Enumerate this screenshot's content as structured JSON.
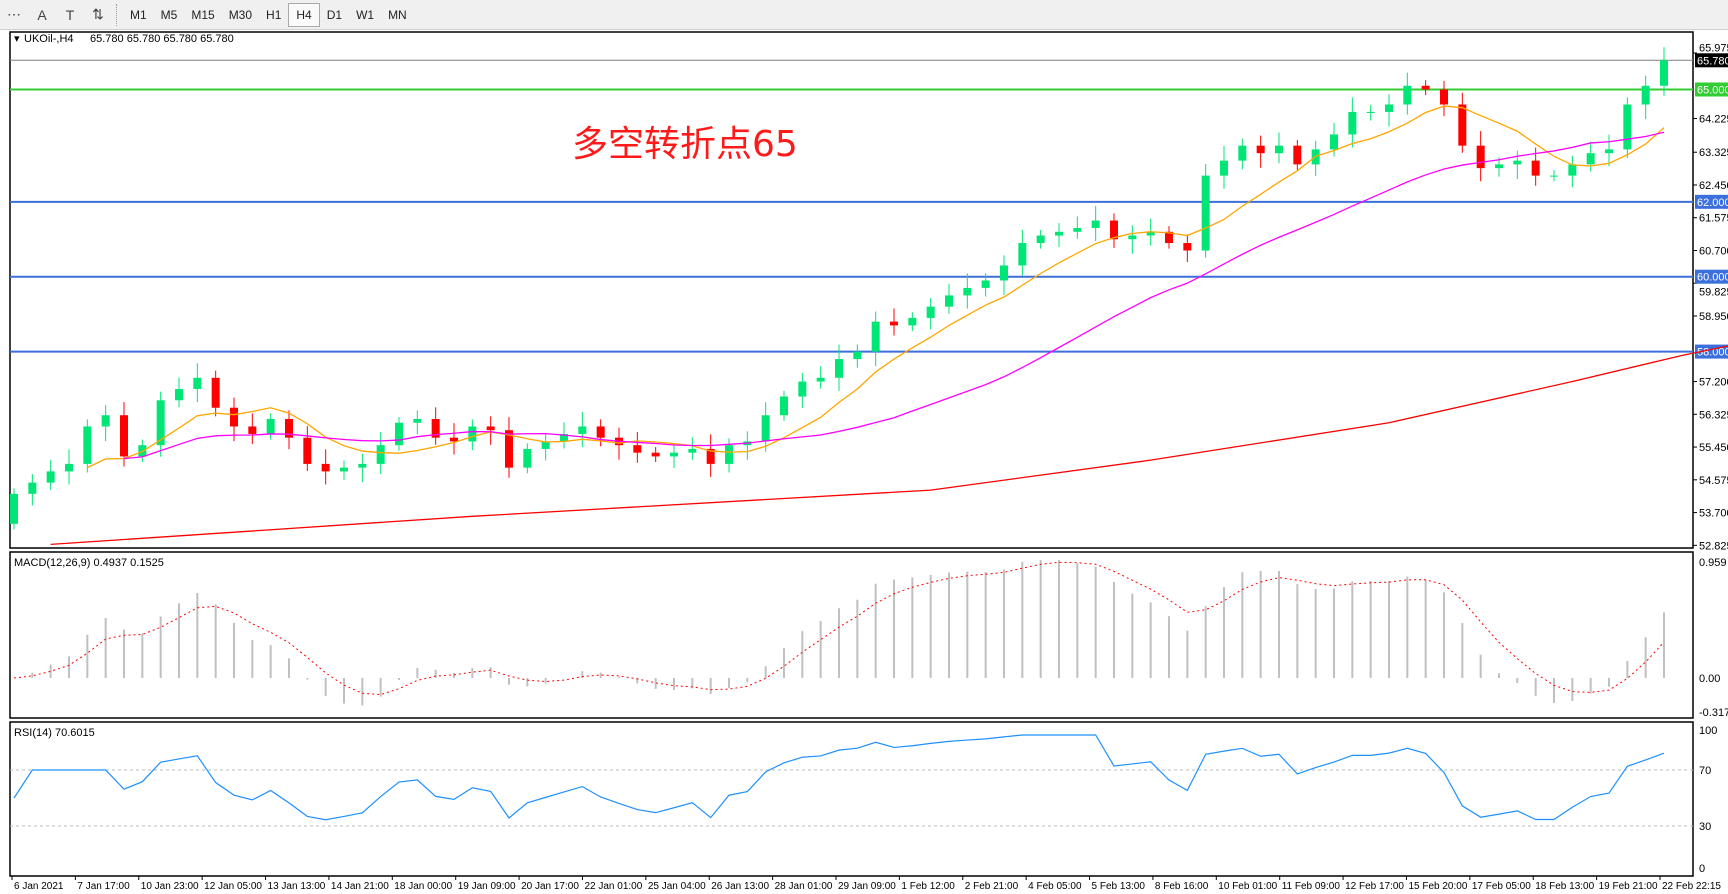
{
  "toolbar": {
    "tools": [
      {
        "icon": "grid-icon",
        "label": ""
      },
      {
        "icon": "text-a-icon",
        "label": "A"
      },
      {
        "icon": "text-label-icon",
        "label": "T"
      },
      {
        "icon": "arrows-icon",
        "label": "⇅"
      }
    ],
    "timeframes": [
      "M1",
      "M5",
      "M15",
      "M30",
      "H1",
      "H4",
      "D1",
      "W1",
      "MN"
    ],
    "active_timeframe": "H4"
  },
  "chart_header": {
    "symbol": "UKOil-,H4",
    "ohlc": "65.780 65.780 65.780 65.780"
  },
  "annotation": "多空转折点65",
  "colors": {
    "bull": "#00e676",
    "bear": "#ff0000",
    "ma_fast": "#ffa500",
    "ma_mid": "#ff00ff",
    "ma_slow": "#ff0000",
    "level_blue": "#3b6fdb",
    "level_green": "#32cd32",
    "macd_hist": "#c0c0c0",
    "macd_signal": "#ff0000",
    "rsi": "#1e90ff"
  },
  "chart_data": {
    "type": "candlestick",
    "closes": [
      54.2,
      54.5,
      54.8,
      55.0,
      56.0,
      56.3,
      55.2,
      55.5,
      56.7,
      57.0,
      57.3,
      56.5,
      56.0,
      55.8,
      56.2,
      55.7,
      55.0,
      54.8,
      54.9,
      55.0,
      55.5,
      56.1,
      56.2,
      55.7,
      55.6,
      56.0,
      55.9,
      54.9,
      55.4,
      55.6,
      55.8,
      56.0,
      55.7,
      55.5,
      55.3,
      55.2,
      55.3,
      55.4,
      55.0,
      55.5,
      55.6,
      56.3,
      56.8,
      57.2,
      57.3,
      57.8,
      58.0,
      58.8,
      58.7,
      58.9,
      59.2,
      59.5,
      59.7,
      59.9,
      60.3,
      60.9,
      61.1,
      61.2,
      61.3,
      61.5,
      61.0,
      61.1,
      61.2,
      60.9,
      60.7,
      62.7,
      63.1,
      63.5,
      63.3,
      63.5,
      63.0,
      63.4,
      63.8,
      64.4,
      64.4,
      64.6,
      65.1,
      65.0,
      64.6,
      63.5,
      62.9,
      63.0,
      63.1,
      62.7,
      62.7,
      63.0,
      63.3,
      63.4,
      64.6,
      65.1,
      65.78
    ],
    "first_open": 53.4,
    "slow_ma_points": [
      [
        2,
        52.85
      ],
      [
        25,
        53.6
      ],
      [
        50,
        54.3
      ],
      [
        62,
        55.1
      ],
      [
        75,
        56.1
      ],
      [
        85,
        57.2
      ],
      [
        91,
        57.9
      ],
      [
        96,
        58.4
      ]
    ],
    "price_axis": {
      "min": 52.825,
      "max": 65.975,
      "ticks": [
        "65.975",
        "64.225",
        "63.325",
        "62.450",
        "61.575",
        "60.700",
        "59.825",
        "58.950",
        "57.200",
        "56.325",
        "55.450",
        "54.575",
        "53.700",
        "52.825"
      ]
    },
    "levels": [
      {
        "value": 65.78,
        "label": "65.780",
        "color": "#808080",
        "tag": "#000000"
      },
      {
        "value": 65.0,
        "label": "65.000",
        "color": "#32cd32",
        "tag": "#32cd32"
      },
      {
        "value": 62.0,
        "label": "62.000",
        "color": "#3b6fdb",
        "tag": "#3b6fdb"
      },
      {
        "value": 60.0,
        "label": "60.000",
        "color": "#3b6fdb",
        "tag": "#3b6fdb"
      },
      {
        "value": 58.0,
        "label": "58.000",
        "color": "#3b6fdb",
        "tag": "#3b6fdb"
      }
    ],
    "macd": {
      "label": "MACD(12,26,9) 0.4937 0.1525",
      "max": 0.959,
      "min": -0.3171,
      "ticks": [
        "0.959",
        "0.00",
        "-0.3171"
      ]
    },
    "rsi": {
      "label": "RSI(14) 70.6015",
      "ticks": [
        "100",
        "70",
        "30",
        "0"
      ],
      "levels": [
        70,
        30
      ]
    },
    "time_labels": [
      "6 Jan 2021",
      "7 Jan 17:00",
      "10 Jan 23:00",
      "12 Jan 05:00",
      "13 Jan 13:00",
      "14 Jan 21:00",
      "18 Jan 00:00",
      "19 Jan 09:00",
      "20 Jan 17:00",
      "22 Jan 01:00",
      "25 Jan 04:00",
      "26 Jan 13:00",
      "28 Jan 01:00",
      "29 Jan 09:00",
      "1 Feb 12:00",
      "2 Feb 21:00",
      "4 Feb 05:00",
      "5 Feb 13:00",
      "8 Feb 16:00",
      "10 Feb 01:00",
      "11 Feb 09:00",
      "12 Feb 17:00",
      "15 Feb 20:00",
      "17 Feb 05:00",
      "18 Feb 13:00",
      "19 Feb 21:00",
      "22 Feb 22:15"
    ]
  }
}
